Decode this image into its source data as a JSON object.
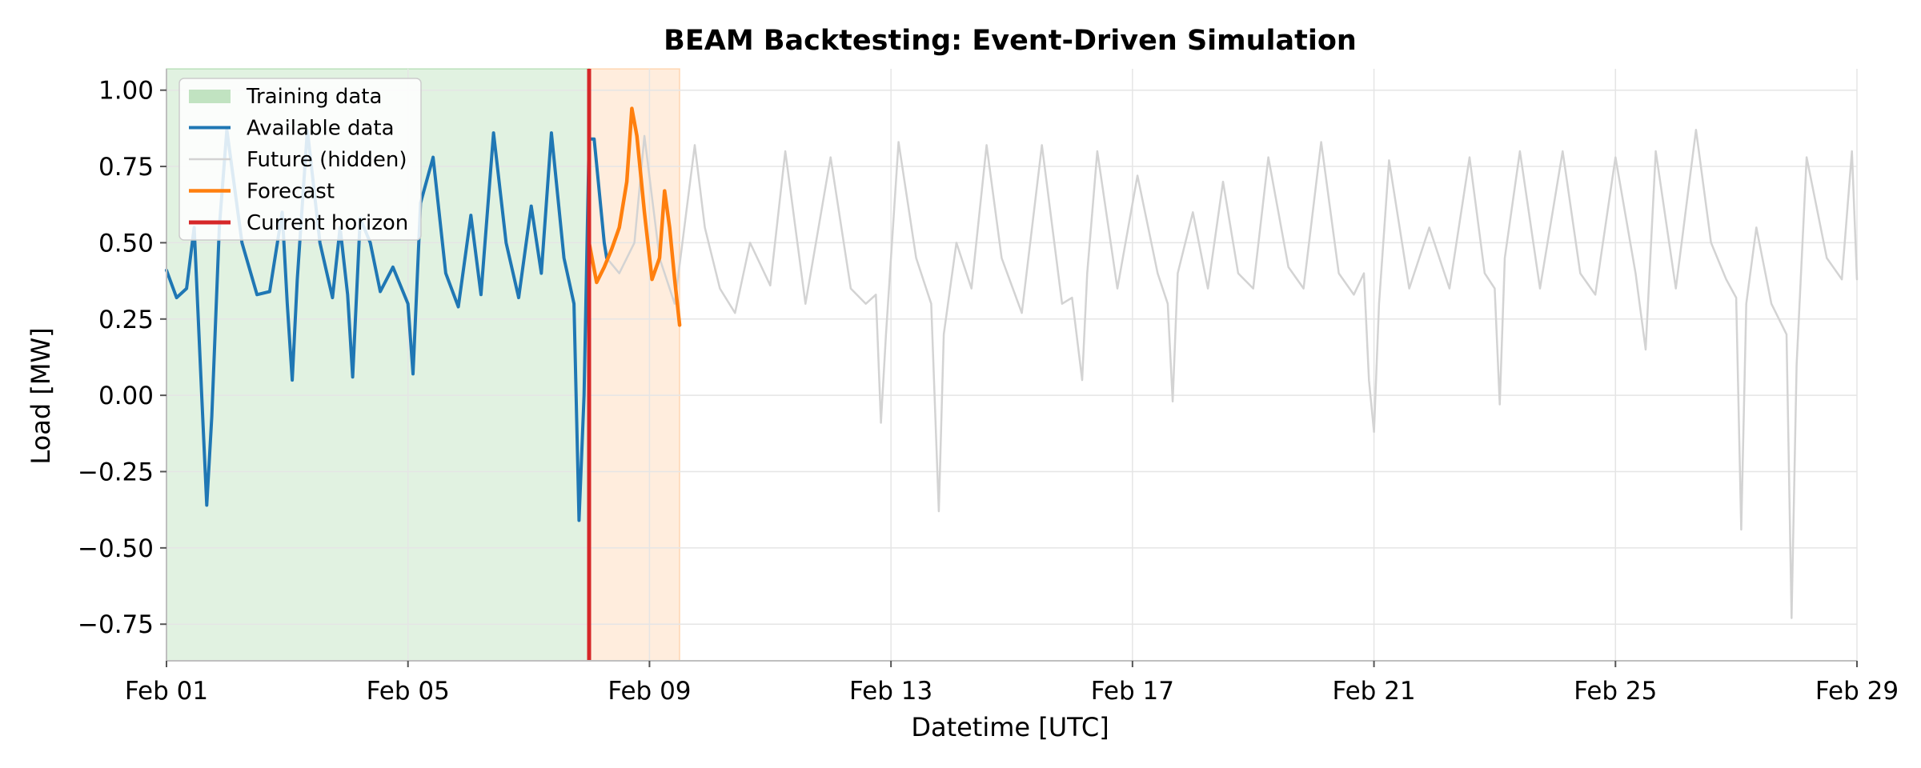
{
  "chart_data": {
    "type": "line",
    "title": "BEAM Backtesting: Event-Driven Simulation",
    "xlabel": "Datetime [UTC]",
    "ylabel": "Load [MW]",
    "x_range": [
      "2024-02-01",
      "2024-02-29"
    ],
    "ylim": [
      -0.87,
      1.07
    ],
    "x_ticks": [
      {
        "date": "2024-02-01",
        "label": "Feb 01"
      },
      {
        "date": "2024-02-05",
        "label": "Feb 05"
      },
      {
        "date": "2024-02-09",
        "label": "Feb 09"
      },
      {
        "date": "2024-02-13",
        "label": "Feb 13"
      },
      {
        "date": "2024-02-17",
        "label": "Feb 17"
      },
      {
        "date": "2024-02-21",
        "label": "Feb 21"
      },
      {
        "date": "2024-02-25",
        "label": "Feb 25"
      },
      {
        "date": "2024-02-29",
        "label": "Feb 29"
      }
    ],
    "y_ticks": [
      {
        "value": 1.0,
        "label": "1.00"
      },
      {
        "value": 0.75,
        "label": "0.75"
      },
      {
        "value": 0.5,
        "label": "0.50"
      },
      {
        "value": 0.25,
        "label": "0.25"
      },
      {
        "value": 0.0,
        "label": "0.00"
      },
      {
        "value": -0.25,
        "label": "−0.25"
      },
      {
        "value": -0.5,
        "label": "−0.50"
      },
      {
        "value": -0.75,
        "label": "−0.75"
      }
    ],
    "grid": true,
    "legend_position": "top-left",
    "regions": [
      {
        "name": "Training data",
        "x_start": "2024-02-01 00:00",
        "x_end": "2024-02-08 00:00",
        "color": "#2ca02c"
      },
      {
        "name": "Forecast window",
        "x_start": "2024-02-08 00:00",
        "x_end": "2024-02-09 12:00",
        "color": "#ff7f0e"
      }
    ],
    "current_horizon": {
      "name": "Current horizon",
      "x": "2024-02-08 00:00",
      "color": "#d62728"
    },
    "series": [
      {
        "name": "Available data",
        "color": "#1f77b4",
        "points": [
          [
            "2024-02-01 00:00",
            0.41
          ],
          [
            "2024-02-01 04:00",
            0.32
          ],
          [
            "2024-02-01 08:00",
            0.35
          ],
          [
            "2024-02-01 11:00",
            0.55
          ],
          [
            "2024-02-01 14:00",
            0.0
          ],
          [
            "2024-02-01 16:00",
            -0.36
          ],
          [
            "2024-02-01 18:00",
            -0.07
          ],
          [
            "2024-02-01 21:00",
            0.55
          ],
          [
            "2024-02-02 00:00",
            0.87
          ],
          [
            "2024-02-02 06:00",
            0.5
          ],
          [
            "2024-02-02 12:00",
            0.33
          ],
          [
            "2024-02-02 17:00",
            0.34
          ],
          [
            "2024-02-02 22:00",
            0.6
          ],
          [
            "2024-02-03 00:00",
            0.3
          ],
          [
            "2024-02-03 02:00",
            0.05
          ],
          [
            "2024-02-03 04:00",
            0.38
          ],
          [
            "2024-02-03 08:00",
            0.87
          ],
          [
            "2024-02-03 13:00",
            0.5
          ],
          [
            "2024-02-03 18:00",
            0.32
          ],
          [
            "2024-02-03 21:00",
            0.55
          ],
          [
            "2024-02-04 00:00",
            0.33
          ],
          [
            "2024-02-04 02:00",
            0.06
          ],
          [
            "2024-02-04 05:00",
            0.58
          ],
          [
            "2024-02-04 09:00",
            0.5
          ],
          [
            "2024-02-04 13:00",
            0.34
          ],
          [
            "2024-02-04 18:00",
            0.42
          ],
          [
            "2024-02-05 00:00",
            0.3
          ],
          [
            "2024-02-05 02:00",
            0.07
          ],
          [
            "2024-02-05 05:00",
            0.63
          ],
          [
            "2024-02-05 10:00",
            0.78
          ],
          [
            "2024-02-05 15:00",
            0.4
          ],
          [
            "2024-02-05 20:00",
            0.29
          ],
          [
            "2024-02-06 01:00",
            0.59
          ],
          [
            "2024-02-06 05:00",
            0.33
          ],
          [
            "2024-02-06 10:00",
            0.86
          ],
          [
            "2024-02-06 15:00",
            0.5
          ],
          [
            "2024-02-06 20:00",
            0.32
          ],
          [
            "2024-02-07 01:00",
            0.62
          ],
          [
            "2024-02-07 05:00",
            0.4
          ],
          [
            "2024-02-07 09:00",
            0.86
          ],
          [
            "2024-02-07 14:00",
            0.45
          ],
          [
            "2024-02-07 18:00",
            0.3
          ],
          [
            "2024-02-07 20:00",
            -0.41
          ],
          [
            "2024-02-07 22:00",
            0.0
          ],
          [
            "2024-02-08 00:00",
            0.84
          ],
          [
            "2024-02-08 02:00",
            0.84
          ],
          [
            "2024-02-08 06:00",
            0.5
          ],
          [
            "2024-02-08 07:00",
            0.45
          ]
        ]
      },
      {
        "name": "Future (hidden)",
        "color": "#d3d3d3",
        "points": [
          [
            "2024-02-08 07:00",
            0.45
          ],
          [
            "2024-02-08 12:00",
            0.4
          ],
          [
            "2024-02-08 18:00",
            0.5
          ],
          [
            "2024-02-08 22:00",
            0.85
          ],
          [
            "2024-02-09 04:00",
            0.45
          ],
          [
            "2024-02-09 10:00",
            0.3
          ],
          [
            "2024-02-09 18:00",
            0.82
          ],
          [
            "2024-02-09 22:00",
            0.55
          ],
          [
            "2024-02-10 04:00",
            0.35
          ],
          [
            "2024-02-10 10:00",
            0.27
          ],
          [
            "2024-02-10 16:00",
            0.5
          ],
          [
            "2024-02-11 00:00",
            0.36
          ],
          [
            "2024-02-11 06:00",
            0.8
          ],
          [
            "2024-02-11 14:00",
            0.3
          ],
          [
            "2024-02-12 00:00",
            0.78
          ],
          [
            "2024-02-12 08:00",
            0.35
          ],
          [
            "2024-02-12 14:00",
            0.3
          ],
          [
            "2024-02-12 18:00",
            0.33
          ],
          [
            "2024-02-12 20:00",
            -0.09
          ],
          [
            "2024-02-12 22:00",
            0.2
          ],
          [
            "2024-02-13 03:00",
            0.83
          ],
          [
            "2024-02-13 10:00",
            0.45
          ],
          [
            "2024-02-13 16:00",
            0.3
          ],
          [
            "2024-02-13 19:00",
            -0.38
          ],
          [
            "2024-02-13 21:00",
            0.2
          ],
          [
            "2024-02-14 02:00",
            0.5
          ],
          [
            "2024-02-14 08:00",
            0.35
          ],
          [
            "2024-02-14 14:00",
            0.82
          ],
          [
            "2024-02-14 20:00",
            0.45
          ],
          [
            "2024-02-15 04:00",
            0.27
          ],
          [
            "2024-02-15 12:00",
            0.82
          ],
          [
            "2024-02-15 20:00",
            0.3
          ],
          [
            "2024-02-16 00:00",
            0.32
          ],
          [
            "2024-02-16 04:00",
            0.05
          ],
          [
            "2024-02-16 06:00",
            0.4
          ],
          [
            "2024-02-16 10:00",
            0.8
          ],
          [
            "2024-02-16 18:00",
            0.35
          ],
          [
            "2024-02-17 02:00",
            0.72
          ],
          [
            "2024-02-17 10:00",
            0.4
          ],
          [
            "2024-02-17 14:00",
            0.3
          ],
          [
            "2024-02-17 16:00",
            -0.02
          ],
          [
            "2024-02-17 18:00",
            0.4
          ],
          [
            "2024-02-18 00:00",
            0.6
          ],
          [
            "2024-02-18 06:00",
            0.35
          ],
          [
            "2024-02-18 12:00",
            0.7
          ],
          [
            "2024-02-18 18:00",
            0.4
          ],
          [
            "2024-02-19 00:00",
            0.35
          ],
          [
            "2024-02-19 06:00",
            0.78
          ],
          [
            "2024-02-19 14:00",
            0.42
          ],
          [
            "2024-02-19 20:00",
            0.35
          ],
          [
            "2024-02-20 03:00",
            0.83
          ],
          [
            "2024-02-20 10:00",
            0.4
          ],
          [
            "2024-02-20 16:00",
            0.33
          ],
          [
            "2024-02-20 20:00",
            0.4
          ],
          [
            "2024-02-20 22:00",
            0.05
          ],
          [
            "2024-02-21 00:00",
            -0.12
          ],
          [
            "2024-02-21 02:00",
            0.3
          ],
          [
            "2024-02-21 06:00",
            0.77
          ],
          [
            "2024-02-21 14:00",
            0.35
          ],
          [
            "2024-02-21 22:00",
            0.55
          ],
          [
            "2024-02-22 06:00",
            0.35
          ],
          [
            "2024-02-22 14:00",
            0.78
          ],
          [
            "2024-02-22 20:00",
            0.4
          ],
          [
            "2024-02-23 00:00",
            0.35
          ],
          [
            "2024-02-23 02:00",
            -0.03
          ],
          [
            "2024-02-23 04:00",
            0.45
          ],
          [
            "2024-02-23 10:00",
            0.8
          ],
          [
            "2024-02-23 18:00",
            0.35
          ],
          [
            "2024-02-24 03:00",
            0.8
          ],
          [
            "2024-02-24 10:00",
            0.4
          ],
          [
            "2024-02-24 16:00",
            0.33
          ],
          [
            "2024-02-25 00:00",
            0.78
          ],
          [
            "2024-02-25 08:00",
            0.4
          ],
          [
            "2024-02-25 12:00",
            0.15
          ],
          [
            "2024-02-25 16:00",
            0.8
          ],
          [
            "2024-02-26 00:00",
            0.35
          ],
          [
            "2024-02-26 08:00",
            0.87
          ],
          [
            "2024-02-26 14:00",
            0.5
          ],
          [
            "2024-02-26 20:00",
            0.38
          ],
          [
            "2024-02-27 00:00",
            0.32
          ],
          [
            "2024-02-27 02:00",
            -0.44
          ],
          [
            "2024-02-27 04:00",
            0.3
          ],
          [
            "2024-02-27 08:00",
            0.55
          ],
          [
            "2024-02-27 14:00",
            0.3
          ],
          [
            "2024-02-27 20:00",
            0.2
          ],
          [
            "2024-02-27 22:00",
            -0.73
          ],
          [
            "2024-02-28 00:00",
            0.1
          ],
          [
            "2024-02-28 04:00",
            0.78
          ],
          [
            "2024-02-28 12:00",
            0.45
          ],
          [
            "2024-02-28 18:00",
            0.38
          ],
          [
            "2024-02-28 22:00",
            0.8
          ],
          [
            "2024-02-29 00:00",
            0.38
          ]
        ]
      },
      {
        "name": "Forecast",
        "color": "#ff7f0e",
        "points": [
          [
            "2024-02-08 00:00",
            0.5
          ],
          [
            "2024-02-08 03:00",
            0.37
          ],
          [
            "2024-02-08 06:00",
            0.42
          ],
          [
            "2024-02-08 09:00",
            0.48
          ],
          [
            "2024-02-08 12:00",
            0.55
          ],
          [
            "2024-02-08 15:00",
            0.7
          ],
          [
            "2024-02-08 17:00",
            0.94
          ],
          [
            "2024-02-08 19:00",
            0.85
          ],
          [
            "2024-02-08 22:00",
            0.6
          ],
          [
            "2024-02-09 01:00",
            0.38
          ],
          [
            "2024-02-09 04:00",
            0.45
          ],
          [
            "2024-02-09 06:00",
            0.67
          ],
          [
            "2024-02-09 08:00",
            0.55
          ],
          [
            "2024-02-09 10:00",
            0.38
          ],
          [
            "2024-02-09 12:00",
            0.23
          ]
        ]
      }
    ]
  }
}
